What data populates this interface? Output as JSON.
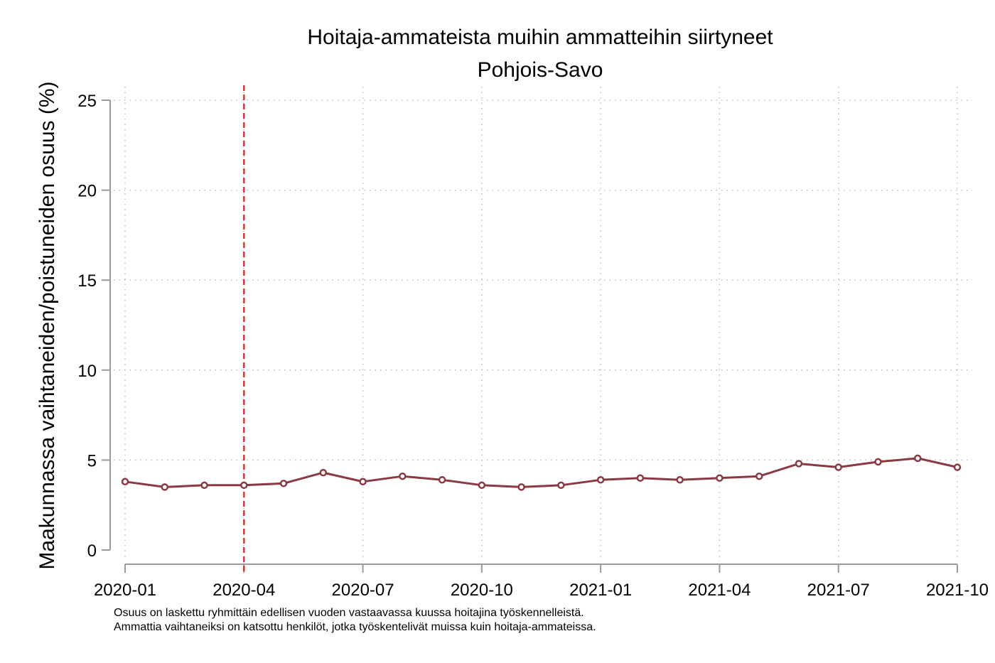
{
  "chart_data": {
    "type": "line",
    "title": "Hoitaja-ammateista muihin ammatteihin siirtyneet",
    "subtitle": "Pohjois-Savo",
    "ylabel": "Maakunnassa vaihtaneiden/poistuneiden osuus (%)",
    "xlabel": "",
    "x": [
      "2020-01",
      "2020-02",
      "2020-03",
      "2020-04",
      "2020-05",
      "2020-06",
      "2020-07",
      "2020-08",
      "2020-09",
      "2020-10",
      "2020-11",
      "2020-12",
      "2021-01",
      "2021-02",
      "2021-03",
      "2021-04",
      "2021-05",
      "2021-06",
      "2021-07",
      "2021-08",
      "2021-09",
      "2021-10"
    ],
    "series": [
      {
        "values": [
          3.8,
          3.5,
          3.6,
          3.6,
          3.7,
          4.3,
          3.8,
          4.1,
          3.9,
          3.6,
          3.5,
          3.6,
          3.9,
          4.0,
          3.9,
          4.0,
          4.1,
          4.8,
          4.6,
          4.9,
          5.1,
          4.6
        ],
        "color": "#8b3a44"
      }
    ],
    "x_tick_labels": [
      "2020-01",
      "2020-04",
      "2020-07",
      "2020-10",
      "2021-01",
      "2021-04",
      "2021-07",
      "2021-10"
    ],
    "y_ticks": [
      0,
      5,
      10,
      15,
      20,
      25
    ],
    "ylim": [
      0,
      25
    ],
    "grid": true,
    "reference_line": {
      "x": "2020-04",
      "color": "#e8000b",
      "style": "dashed"
    },
    "notes": [
      "Osuus on laskettu ryhmittäin edellisen vuoden vastaavassa kuussa hoitajina työskennelleistä.",
      "Ammattia vaihtaneiksi on katsottu henkilöt, jotka työskentelivät muissa kuin hoitaja-ammateissa."
    ]
  }
}
